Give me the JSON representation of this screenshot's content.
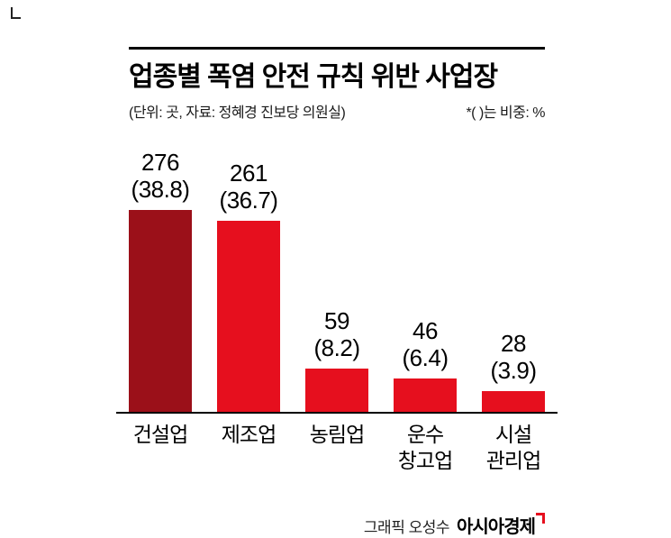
{
  "header": {
    "title": "업종별 폭염 안전 규칙 위반 사업장",
    "subtitle_left": "(단위: 곳, 자료: 정혜경 진보당 의원실)",
    "subtitle_right": "*( )는 비중: %"
  },
  "chart_data": {
    "type": "bar",
    "title": "업종별 폭염 안전 규칙 위반 사업장",
    "unit": "곳",
    "categories": [
      "건설업",
      "제조업",
      "농림업",
      "운수\n창고업",
      "시설\n관리업"
    ],
    "values": [
      276,
      261,
      59,
      46,
      28
    ],
    "percents": [
      "38.8",
      "36.7",
      "8.2",
      "6.4",
      "3.9"
    ],
    "ylim": [
      0,
      276
    ],
    "grid": false,
    "legend": "none",
    "bar_colors": [
      "#9b1019",
      "#e60f1e",
      "#e60f1e",
      "#e60f1e",
      "#e60f1e"
    ],
    "value_label_format": "value (percent)"
  },
  "footer": {
    "credit": "그래픽 오성수",
    "brand": "아시아경제"
  }
}
